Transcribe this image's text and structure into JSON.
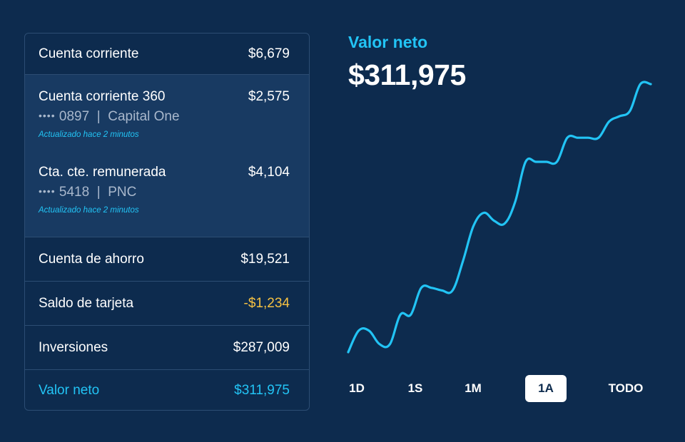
{
  "accounts": {
    "checking": {
      "name": "Cuenta corriente",
      "amount": "$6,679"
    },
    "sub_accounts": [
      {
        "name": "Cuenta corriente 360",
        "amount": "$2,575",
        "mask": "••••",
        "last4": "0897",
        "separator": "|",
        "bank": "Capital One",
        "updated": "Actualizado hace 2 minutos"
      },
      {
        "name": "Cta. cte. remunerada",
        "amount": "$4,104",
        "mask": "••••",
        "last4": "5418",
        "separator": "|",
        "bank": "PNC",
        "updated": "Actualizado hace 2 minutos"
      }
    ],
    "savings": {
      "name": "Cuenta de ahorro",
      "amount": "$19,521"
    },
    "card": {
      "name": "Saldo de tarjeta",
      "amount": "-$1,234"
    },
    "investments": {
      "name": "Inversiones",
      "amount": "$287,009"
    },
    "net_worth": {
      "name": "Valor neto",
      "amount": "$311,975"
    }
  },
  "summary": {
    "label": "Valor neto",
    "value": "$311,975"
  },
  "ranges": [
    {
      "label": "1D",
      "active": false
    },
    {
      "label": "1S",
      "active": false
    },
    {
      "label": "1M",
      "active": false
    },
    {
      "label": "1A",
      "active": true
    },
    {
      "label": "TODO",
      "active": false
    }
  ],
  "colors": {
    "background": "#0d2b4e",
    "accent": "#22c4f5",
    "negative": "#f5c142",
    "line": "#22c4f5"
  },
  "chart_data": {
    "type": "line",
    "x": [
      0,
      1,
      2,
      3,
      4,
      5,
      6,
      7,
      8,
      9,
      10,
      11,
      12,
      13,
      14,
      15,
      16,
      17,
      18,
      19,
      20,
      21,
      22,
      23,
      24,
      25,
      26,
      27,
      28,
      29
    ],
    "y": [
      0,
      8,
      8,
      3,
      3,
      14,
      14,
      24,
      24,
      23,
      23,
      34,
      47,
      52,
      49,
      48,
      56,
      71,
      71,
      71,
      71,
      80,
      80,
      80,
      80,
      86,
      88,
      90,
      100,
      100
    ],
    "ylim": [
      0,
      100
    ],
    "grid": false,
    "legend": "none"
  }
}
